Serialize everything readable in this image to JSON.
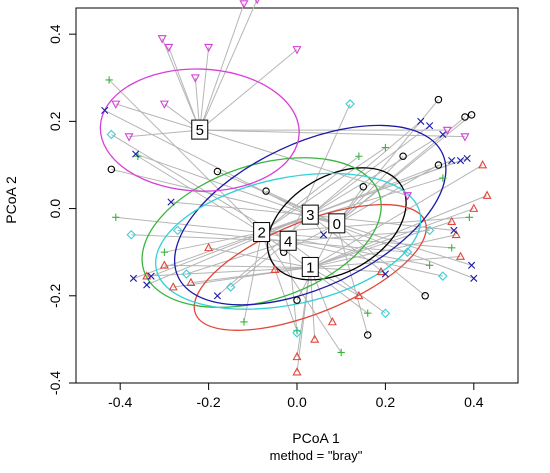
{
  "chart_data": {
    "type": "scatter",
    "title": "",
    "xlabel": "PCoA 1",
    "ylabel": "PCoA 2",
    "subtitle": "method = \"bray\"",
    "xlim": [
      -0.5,
      0.5
    ],
    "ylim": [
      -0.4,
      0.46
    ],
    "x_ticks": [
      -0.4,
      -0.2,
      0.0,
      0.2,
      0.4
    ],
    "x_tick_labels": [
      "-0.4",
      "-0.2",
      "0.0",
      "0.2",
      "0.4"
    ],
    "y_ticks": [
      -0.4,
      -0.2,
      0.0,
      0.2,
      0.4
    ],
    "y_tick_labels": [
      "-0.4",
      "-0.2",
      "0.0",
      "0.2",
      "0.4"
    ],
    "grid": false,
    "series": [
      {
        "group": "0",
        "color": "#000000",
        "marker": "circle",
        "centroid": [
          0.09,
          -0.035
        ],
        "ellipse": {
          "center": [
            0.09,
            -0.035
          ],
          "rx": 0.17,
          "ry": 0.11,
          "angle_deg": 30
        },
        "points": [
          [
            -0.42,
            0.09
          ],
          [
            -0.18,
            0.085
          ],
          [
            -0.07,
            0.04
          ],
          [
            -0.03,
            -0.1
          ],
          [
            0.0,
            -0.21
          ],
          [
            0.15,
            0.05
          ],
          [
            0.24,
            0.12
          ],
          [
            0.32,
            0.25
          ],
          [
            0.38,
            0.21
          ],
          [
            0.395,
            0.215
          ],
          [
            0.16,
            -0.29
          ],
          [
            0.29,
            -0.2
          ],
          [
            0.32,
            0.1
          ]
        ]
      },
      {
        "group": "1",
        "color": "#e0473a",
        "marker": "triangle",
        "centroid": [
          0.03,
          -0.135
        ],
        "ellipse": {
          "center": [
            0.03,
            -0.135
          ],
          "rx": 0.28,
          "ry": 0.105,
          "angle_deg": 22
        },
        "points": [
          [
            -0.34,
            -0.155
          ],
          [
            -0.3,
            -0.13
          ],
          [
            -0.28,
            -0.18
          ],
          [
            -0.24,
            -0.17
          ],
          [
            -0.2,
            -0.09
          ],
          [
            -0.05,
            -0.14
          ],
          [
            0.0,
            -0.34
          ],
          [
            0.0,
            -0.375
          ],
          [
            0.04,
            -0.3
          ],
          [
            0.14,
            -0.2
          ],
          [
            0.19,
            -0.145
          ],
          [
            0.35,
            -0.03
          ],
          [
            0.37,
            -0.11
          ],
          [
            0.4,
            0.0
          ],
          [
            0.42,
            0.1
          ],
          [
            0.43,
            0.03
          ],
          [
            0.36,
            -0.06
          ],
          [
            0.08,
            -0.26
          ]
        ]
      },
      {
        "group": "2",
        "color": "#38b53e",
        "marker": "plus",
        "centroid": [
          -0.08,
          -0.055
        ],
        "ellipse": {
          "center": [
            -0.08,
            -0.055
          ],
          "rx": 0.28,
          "ry": 0.155,
          "angle_deg": 18
        },
        "points": [
          [
            -0.425,
            0.295
          ],
          [
            -0.41,
            -0.02
          ],
          [
            -0.36,
            0.12
          ],
          [
            -0.3,
            -0.1
          ],
          [
            -0.12,
            -0.26
          ],
          [
            0.0,
            -0.28
          ],
          [
            0.1,
            -0.33
          ],
          [
            0.16,
            -0.24
          ],
          [
            0.3,
            -0.13
          ],
          [
            0.33,
            0.07
          ],
          [
            0.35,
            -0.09
          ],
          [
            0.39,
            -0.02
          ],
          [
            0.14,
            0.12
          ],
          [
            0.2,
            0.14
          ]
        ]
      },
      {
        "group": "3",
        "color": "#1a1aa8",
        "marker": "cross",
        "centroid": [
          0.03,
          -0.015
        ],
        "ellipse": {
          "center": [
            0.03,
            -0.015
          ],
          "rx": 0.33,
          "ry": 0.165,
          "angle_deg": 25
        },
        "points": [
          [
            -0.435,
            0.225
          ],
          [
            -0.365,
            0.125
          ],
          [
            -0.37,
            -0.16
          ],
          [
            -0.33,
            -0.155
          ],
          [
            -0.34,
            -0.175
          ],
          [
            -0.285,
            0.015
          ],
          [
            -0.18,
            -0.2
          ],
          [
            0.06,
            -0.06
          ],
          [
            0.2,
            -0.15
          ],
          [
            0.28,
            0.2
          ],
          [
            0.3,
            0.19
          ],
          [
            0.33,
            0.17
          ],
          [
            0.35,
            0.11
          ],
          [
            0.37,
            0.11
          ],
          [
            0.385,
            0.115
          ],
          [
            0.395,
            -0.13
          ],
          [
            0.4,
            -0.16
          ],
          [
            0.355,
            -0.05
          ]
        ]
      },
      {
        "group": "4",
        "color": "#33d1d8",
        "marker": "diamond",
        "centroid": [
          -0.02,
          -0.075
        ],
        "ellipse": {
          "center": [
            -0.02,
            -0.075
          ],
          "rx": 0.305,
          "ry": 0.145,
          "angle_deg": 12
        },
        "points": [
          [
            -0.42,
            0.17
          ],
          [
            -0.375,
            -0.06
          ],
          [
            -0.27,
            -0.05
          ],
          [
            -0.25,
            -0.15
          ],
          [
            -0.15,
            -0.18
          ],
          [
            0.0,
            -0.285
          ],
          [
            0.12,
            0.24
          ],
          [
            0.2,
            -0.24
          ],
          [
            0.25,
            -0.1
          ],
          [
            0.33,
            -0.155
          ],
          [
            0.3,
            -0.05
          ]
        ]
      },
      {
        "group": "5",
        "color": "#d83fd8",
        "marker": "triangle-down",
        "centroid": [
          -0.22,
          0.18
        ],
        "ellipse": {
          "center": [
            -0.22,
            0.18
          ],
          "rx": 0.225,
          "ry": 0.14,
          "angle_deg": -2
        },
        "points": [
          [
            -0.41,
            0.24
          ],
          [
            -0.38,
            0.165
          ],
          [
            -0.3,
            0.24
          ],
          [
            -0.23,
            0.3
          ],
          [
            -0.305,
            0.39
          ],
          [
            -0.29,
            0.37
          ],
          [
            -0.2,
            0.37
          ],
          [
            -0.12,
            0.47
          ],
          [
            -0.09,
            0.48
          ],
          [
            0.0,
            0.365
          ],
          [
            0.25,
            0.03
          ],
          [
            0.34,
            0.18
          ],
          [
            0.38,
            0.165
          ]
        ]
      }
    ]
  }
}
